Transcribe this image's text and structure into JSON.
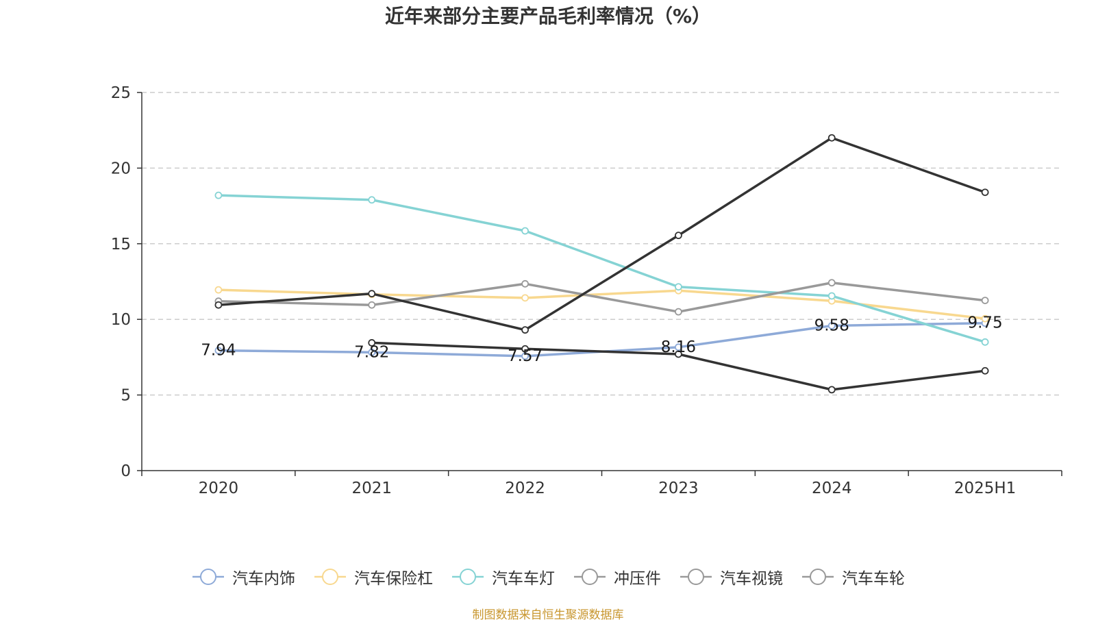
{
  "chart_data": {
    "type": "line",
    "title": "近年来部分主要产品毛利率情况（%）",
    "categories": [
      "2020",
      "2021",
      "2022",
      "2023",
      "2024",
      "2025H1"
    ],
    "ylim": [
      0,
      25
    ],
    "yticks": [
      0,
      5,
      10,
      15,
      20,
      25
    ],
    "grid": true,
    "legend_position": "bottom",
    "series": [
      {
        "name": "汽车内饰",
        "color": "#8eaad8",
        "values": [
          7.94,
          7.82,
          7.57,
          8.16,
          9.58,
          9.75
        ],
        "show_labels": true
      },
      {
        "name": "汽车保险杠",
        "color": "#f8d88f",
        "values": [
          11.95,
          11.65,
          11.42,
          11.9,
          11.22,
          10.05
        ],
        "show_labels": false
      },
      {
        "name": "汽车车灯",
        "color": "#85d3d4",
        "values": [
          18.2,
          17.9,
          15.85,
          12.15,
          11.55,
          8.5
        ],
        "show_labels": false
      },
      {
        "name": "冲压件",
        "color": "#999999",
        "values": [
          11.2,
          10.95,
          12.35,
          10.5,
          12.42,
          11.25
        ],
        "show_labels": false
      },
      {
        "name": "汽车视镜",
        "color": "#333333",
        "values": [
          null,
          8.45,
          8.05,
          7.7,
          5.35,
          6.6
        ],
        "show_labels": false
      },
      {
        "name": "汽车车轮",
        "color": "#333333",
        "values": [
          10.95,
          11.7,
          9.3,
          15.55,
          22.0,
          18.4
        ],
        "show_labels": false
      }
    ]
  },
  "legend_marker_colors": [
    "#8eaad8",
    "#f8d88f",
    "#85d3d4",
    "#999999",
    "#999999",
    "#999999"
  ],
  "source_note": "制图数据来自恒生聚源数据库"
}
